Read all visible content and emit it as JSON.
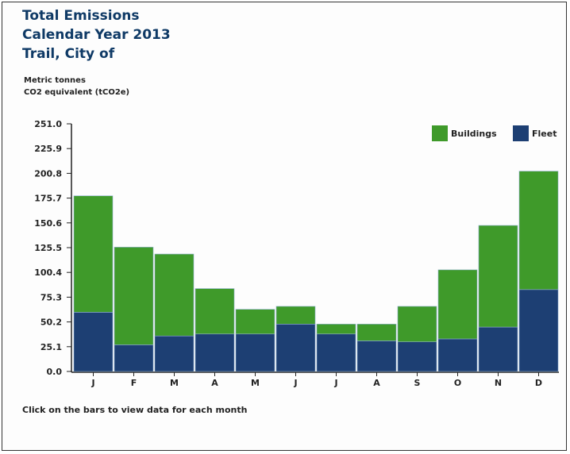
{
  "title_lines": [
    "Total Emissions",
    "Calendar Year 2013",
    "Trail, City of"
  ],
  "unit_lines": [
    "Metric tonnes",
    "CO2 equivalent (tCO2e)"
  ],
  "footer_note": "Click on the bars to view data for each month",
  "colors": {
    "buildings": "#3f9a2a",
    "fleet": "#1d3f73",
    "axis": "#222222"
  },
  "chart_data": {
    "type": "bar",
    "stacked": true,
    "categories": [
      "J",
      "F",
      "M",
      "A",
      "M",
      "J",
      "J",
      "A",
      "S",
      "O",
      "N",
      "D"
    ],
    "series": [
      {
        "name": "Fleet",
        "values": [
          60,
          27,
          36,
          38,
          38,
          48,
          38,
          31,
          30,
          33,
          45,
          83
        ]
      },
      {
        "name": "Buildings",
        "values": [
          118,
          99,
          83,
          46,
          25,
          18,
          10,
          17,
          36,
          70,
          103,
          120
        ]
      }
    ],
    "yticks": [
      "0.0",
      "25.1",
      "50.2",
      "75.3",
      "100.4",
      "125.5",
      "150.6",
      "175.7",
      "200.8",
      "225.9",
      "251.0"
    ],
    "ylim": [
      0,
      251.0
    ],
    "legend": {
      "position": "top-right",
      "items": [
        "Buildings",
        "Fleet"
      ]
    },
    "grid": false
  }
}
